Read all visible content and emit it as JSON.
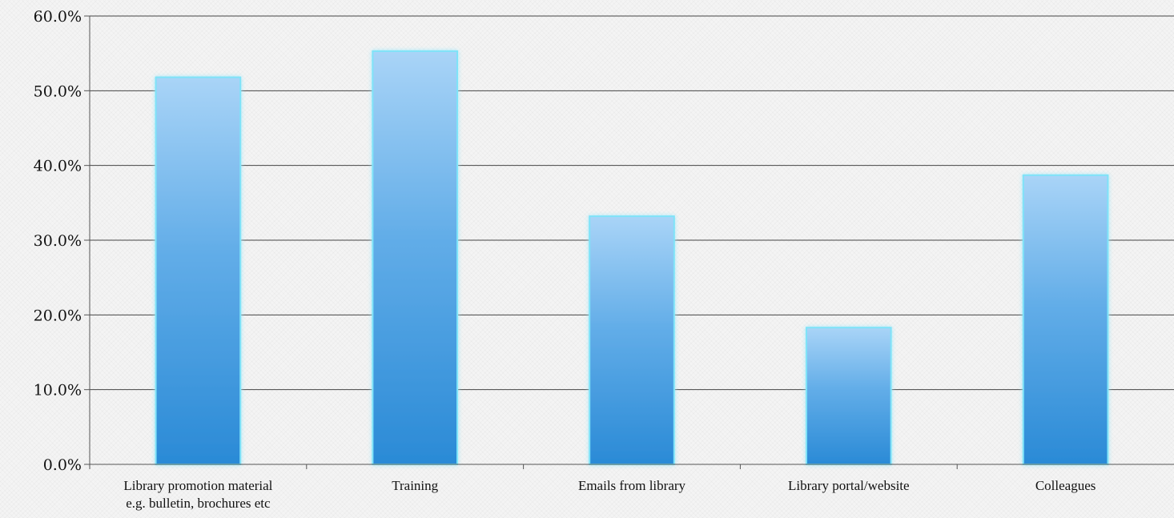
{
  "chart_data": {
    "type": "bar",
    "title": "",
    "xlabel": "",
    "ylabel": "",
    "categories": [
      [
        "Library promotion material",
        "e.g. bulletin, brochures etc"
      ],
      [
        "Training"
      ],
      [
        "Emails from library"
      ],
      [
        "Library portal/website"
      ],
      [
        "Colleagues"
      ]
    ],
    "values": [
      51.8,
      55.3,
      33.2,
      18.3,
      38.7
    ],
    "ylim": [
      0,
      60
    ],
    "yticks": [
      "0.0%",
      "10.0%",
      "20.0%",
      "30.0%",
      "40.0%",
      "50.0%",
      "60.0%"
    ],
    "grid": true,
    "legend": "none",
    "colors": {
      "bar_top": "#a9d4f7",
      "bar_bottom": "#2a8ad6",
      "bar_edge": "#7fe3f8",
      "grid": "#444444",
      "axis": "#555555"
    }
  }
}
